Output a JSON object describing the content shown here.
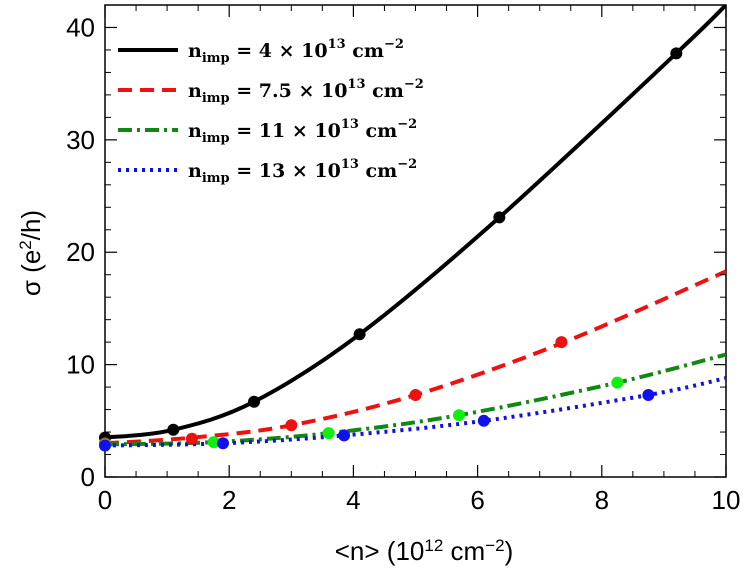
{
  "chart_data": {
    "type": "line",
    "title": "",
    "xlabel": "<n>  (10",
    "xlabel_sup": "12",
    "xlabel_tail": " cm",
    "xlabel_tail_sup": "−2",
    "xlabel_close": ")",
    "ylabel": "σ (e",
    "ylabel_sup": "2",
    "ylabel_tail": "/h)",
    "xlim": [
      0,
      10
    ],
    "ylim": [
      0,
      42
    ],
    "xticks": [
      0,
      2,
      4,
      6,
      8,
      10
    ],
    "xtick_labels": [
      "0",
      "2",
      "4",
      "6",
      "8",
      "10"
    ],
    "yticks": [
      0,
      10,
      20,
      30,
      40
    ],
    "ytick_labels": [
      "0",
      "10",
      "20",
      "30",
      "40"
    ],
    "legend_position": "top-left",
    "series": [
      {
        "name": "n_imp = 4 × 10^13 cm^-2",
        "legend_prefix": "n",
        "legend_sub": "imp",
        "legend_eq": " = 4 × 10",
        "legend_exp": "13",
        "legend_unit": " cm",
        "legend_unit_exp": "−2",
        "color": "#000000",
        "dot_color": "#000000",
        "line_style": "solid",
        "curve_x": [
          0,
          1.1,
          2.4,
          4.1,
          6.35,
          9.2,
          10
        ],
        "curve_y": [
          3.5,
          4.2,
          6.7,
          12.7,
          23.1,
          37.7,
          42
        ],
        "points_x": [
          0,
          1.1,
          2.4,
          4.1,
          6.35,
          9.2
        ],
        "points_y": [
          3.5,
          4.2,
          6.7,
          12.7,
          23.1,
          37.7
        ]
      },
      {
        "name": "n_imp = 7.5 × 10^13 cm^-2",
        "legend_prefix": "n",
        "legend_sub": "imp",
        "legend_eq": " = 7.5 × 10",
        "legend_exp": "13",
        "legend_unit": " cm",
        "legend_unit_exp": "−2",
        "color": "#ee1111",
        "dot_color": "#ee1111",
        "line_style": "dashed",
        "curve_x": [
          0,
          1.4,
          3.0,
          5.0,
          7.35,
          10
        ],
        "curve_y": [
          3.0,
          3.5,
          4.6,
          7.3,
          11.9,
          18.3
        ],
        "points_x": [
          0,
          1.4,
          3.0,
          5.0,
          7.35
        ],
        "points_y": [
          3.0,
          3.4,
          4.6,
          7.3,
          12.0
        ]
      },
      {
        "name": "n_imp = 11 × 10^13 cm^-2",
        "legend_prefix": "n",
        "legend_sub": "imp",
        "legend_eq": " = 11 × 10",
        "legend_exp": "13",
        "legend_unit": " cm",
        "legend_unit_exp": "−2",
        "color": "#118811",
        "dot_color": "#11ee11",
        "line_style": "dashdot",
        "curve_x": [
          0,
          1.75,
          3.6,
          5.7,
          8.25,
          10
        ],
        "curve_y": [
          2.9,
          3.1,
          3.9,
          5.5,
          8.4,
          10.9
        ],
        "points_x": [
          0,
          1.75,
          3.6,
          5.7,
          8.25
        ],
        "points_y": [
          2.9,
          3.1,
          3.9,
          5.5,
          8.4
        ]
      },
      {
        "name": "n_imp = 13 × 10^13 cm^-2",
        "legend_prefix": "n",
        "legend_sub": "imp",
        "legend_eq": " = 13 × 10",
        "legend_exp": "13",
        "legend_unit": " cm",
        "legend_unit_exp": "−2",
        "color": "#1111dd",
        "dot_color": "#1111ee",
        "line_style": "dotted",
        "curve_x": [
          0,
          1.9,
          3.85,
          6.1,
          8.75,
          10
        ],
        "curve_y": [
          2.8,
          3.0,
          3.7,
          5.0,
          7.3,
          8.8
        ],
        "points_x": [
          0,
          1.9,
          3.85,
          6.1,
          8.75
        ],
        "points_y": [
          2.8,
          3.0,
          3.7,
          5.0,
          7.3
        ]
      }
    ]
  }
}
